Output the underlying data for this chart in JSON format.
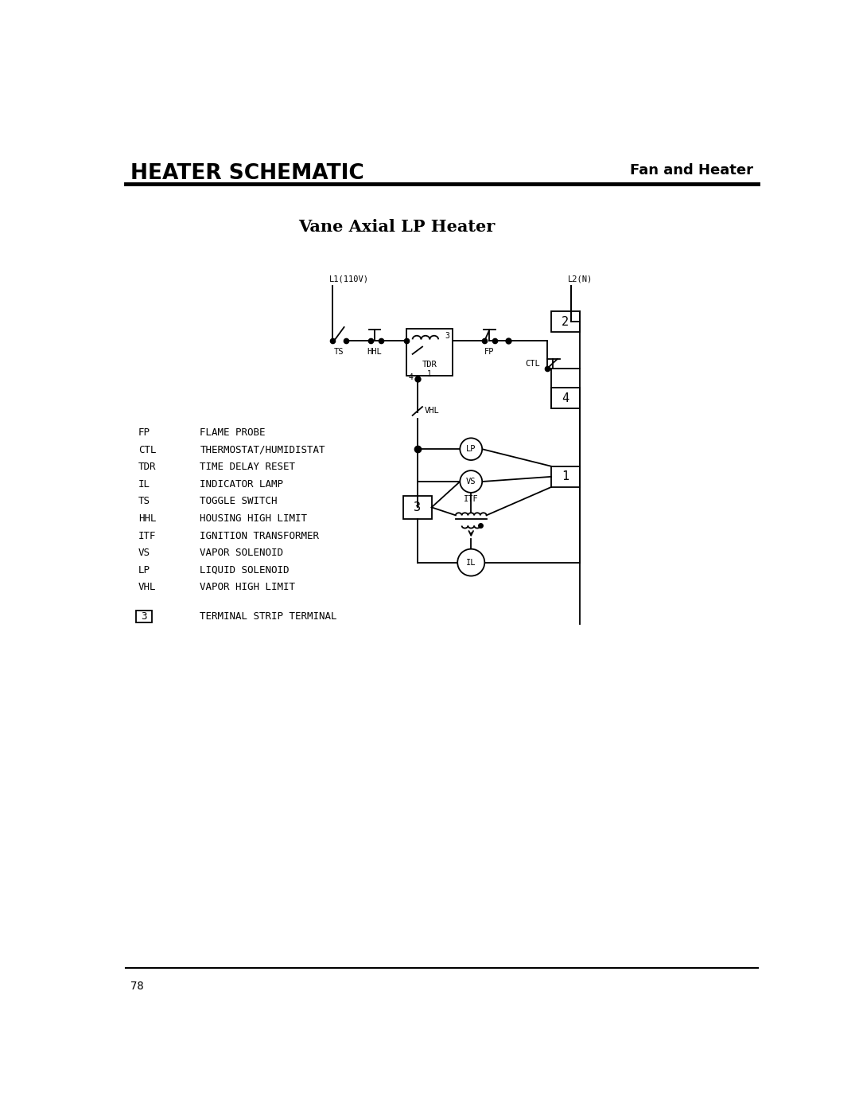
{
  "title_left": "HEATER SCHEMATIC",
  "title_right": "Fan and Heater",
  "subtitle": "Vane Axial LP Heater",
  "page_number": "78",
  "legend": [
    [
      "FP",
      "FLAME PROBE"
    ],
    [
      "CTL",
      "THERMOSTAT/HUMIDISTAT"
    ],
    [
      "TDR",
      "TIME DELAY RESET"
    ],
    [
      "IL",
      "INDICATOR LAMP"
    ],
    [
      "TS",
      "TOGGLE SWITCH"
    ],
    [
      "HHL",
      "HOUSING HIGH LIMIT"
    ],
    [
      "ITF",
      "IGNITION TRANSFORMER"
    ],
    [
      "VS",
      "VAPOR SOLENOID"
    ],
    [
      "LP",
      "LIQUID SOLENOID"
    ],
    [
      "VHL",
      "VAPOR HIGH LIMIT"
    ]
  ],
  "terminal_legend": "TERMINAL STRIP TERMINAL",
  "background_color": "#ffffff",
  "line_color": "#000000",
  "lw": 1.3
}
